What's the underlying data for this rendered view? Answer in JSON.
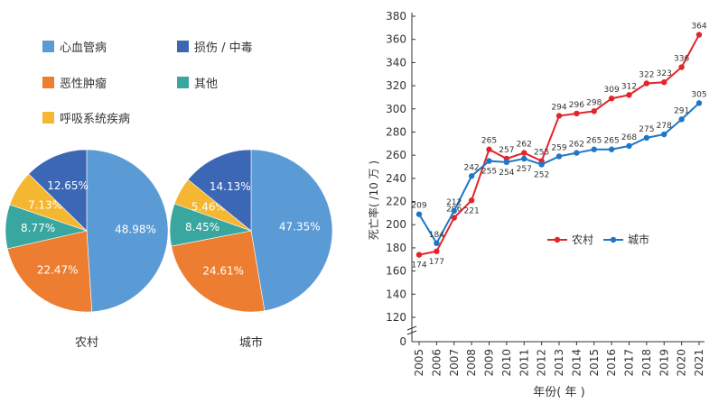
{
  "chart_data": [
    {
      "type": "pie",
      "title": "农村",
      "labels": [
        "心血管病",
        "恶性肿瘤",
        "其他",
        "呼吸系统疾病",
        "损伤 / 中毒"
      ],
      "values": [
        48.98,
        22.47,
        8.77,
        7.13,
        12.65
      ],
      "value_labels": [
        "48.98%",
        "22.47%",
        "8.77%",
        "7.13%",
        "12.65%"
      ]
    },
    {
      "type": "pie",
      "title": "城市",
      "labels": [
        "心血管病",
        "恶性肿瘤",
        "其他",
        "呼吸系统疾病",
        "损伤 / 中毒"
      ],
      "values": [
        47.35,
        24.61,
        8.45,
        5.46,
        14.13
      ],
      "value_labels": [
        "47.35%",
        "24.61%",
        "8.45%",
        "5.46%",
        "14.13%"
      ]
    },
    {
      "type": "line",
      "xlabel": "年份( 年 )",
      "ylabel": "死亡率( /10 万 )",
      "x": [
        "2005",
        "2006",
        "2007",
        "2008",
        "2009",
        "2010",
        "2011",
        "2012",
        "2013",
        "2014",
        "2015",
        "2016",
        "2017",
        "2018",
        "2019",
        "2020",
        "2021"
      ],
      "ylim": [
        0,
        380
      ],
      "yticks": [
        0,
        120,
        140,
        160,
        180,
        200,
        220,
        240,
        260,
        280,
        300,
        320,
        340,
        360,
        380
      ],
      "axis_break": true,
      "grid": false,
      "legend_position": "middle-right",
      "series": [
        {
          "name": "农村",
          "color": "#e3242b",
          "values": [
            174,
            177,
            206,
            221,
            265,
            257,
            262,
            255,
            294,
            296,
            298,
            309,
            312,
            322,
            323,
            336,
            364
          ]
        },
        {
          "name": "城市",
          "color": "#1f77c4",
          "values": [
            209,
            184,
            212,
            242,
            255,
            254,
            257,
            252,
            259,
            262,
            265,
            265,
            268,
            275,
            278,
            291,
            305
          ]
        }
      ]
    }
  ],
  "legend": [
    {
      "label": "心血管病",
      "color": "#5b9bd5"
    },
    {
      "label": "损伤 / 中毒",
      "color": "#3b67b4"
    },
    {
      "label": "恶性肿瘤",
      "color": "#ed7d31"
    },
    {
      "label": "其他",
      "color": "#3aa6a0"
    },
    {
      "label": "呼吸系统疾病",
      "color": "#f5b731"
    }
  ],
  "pie_colors": [
    "#5b9bd5",
    "#ed7d31",
    "#3aa6a0",
    "#f5b731",
    "#3b67b4"
  ]
}
